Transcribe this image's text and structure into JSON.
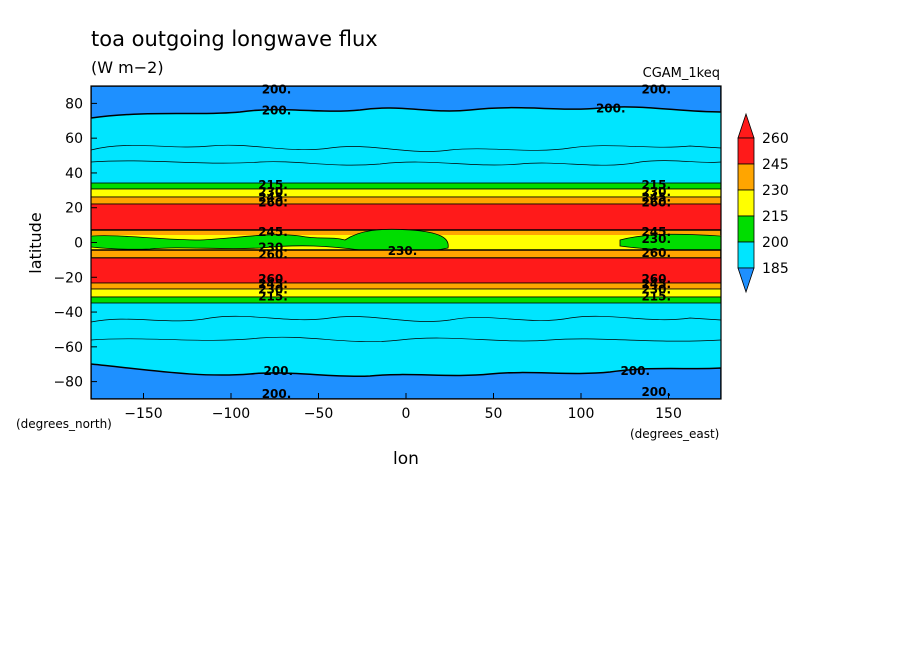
{
  "chart_data": {
    "type": "heatmap",
    "title": "toa outgoing longwave flux",
    "units": "(W m−2)",
    "case": "CGAM_1keq",
    "xlabel": "lon",
    "ylabel": "latitude",
    "x_units": "(degrees_east)",
    "y_units": "(degrees_north)",
    "xlim": [
      -180,
      180
    ],
    "ylim": [
      -90,
      90
    ],
    "x_ticks": [
      -150,
      -100,
      -50,
      0,
      50,
      100,
      150
    ],
    "y_ticks": [
      80,
      60,
      40,
      20,
      0,
      -20,
      -40,
      -60,
      -80
    ],
    "colorbar": {
      "levels": [
        185,
        200,
        215,
        230,
        245,
        260
      ],
      "labels": [
        "185",
        "200",
        "215",
        "230",
        "245",
        "260"
      ],
      "colors": [
        "#1e90ff",
        "#00e5ff",
        "#00dd00",
        "#ffff00",
        "#ffa500",
        "#ff1a1a"
      ],
      "extend": "both"
    },
    "zonal_bands": [
      {
        "lat": [
          80,
          90
        ],
        "class": "185-200"
      },
      {
        "lat": [
          33,
          72
        ],
        "class": "200-215"
      },
      {
        "lat": [
          30,
          33
        ],
        "class": "215-230"
      },
      {
        "lat": [
          25,
          30
        ],
        "class": "230-245"
      },
      {
        "lat": [
          22,
          25
        ],
        "class": "245-260"
      },
      {
        "lat": [
          7,
          22
        ],
        "class": ">260"
      },
      {
        "lat": [
          3,
          7
        ],
        "class": "230-245"
      },
      {
        "lat": [
          -6,
          3
        ],
        "class": "215-245"
      },
      {
        "lat": [
          -22,
          -8
        ],
        "class": ">260"
      },
      {
        "lat": [
          -25,
          -22
        ],
        "class": "245-260"
      },
      {
        "lat": [
          -30,
          -25
        ],
        "class": "230-245"
      },
      {
        "lat": [
          -33,
          -30
        ],
        "class": "215-230"
      },
      {
        "lat": [
          -72,
          -33
        ],
        "class": "200-215"
      },
      {
        "lat": [
          -90,
          -80
        ],
        "class": "185-200"
      }
    ],
    "contour_labels": [
      {
        "lon": -74,
        "lat": 88,
        "text": "200."
      },
      {
        "lon": 143,
        "lat": 88,
        "text": "200."
      },
      {
        "lon": -74,
        "lat": 76,
        "text": "200."
      },
      {
        "lon": 117,
        "lat": 77,
        "text": "200."
      },
      {
        "lon": -76,
        "lat": 33,
        "text": "215."
      },
      {
        "lon": 143,
        "lat": 33,
        "text": "215."
      },
      {
        "lon": -76,
        "lat": 29,
        "text": "230."
      },
      {
        "lon": 143,
        "lat": 29,
        "text": "230."
      },
      {
        "lon": -76,
        "lat": 26,
        "text": "245."
      },
      {
        "lon": 143,
        "lat": 26,
        "text": "245."
      },
      {
        "lon": -76,
        "lat": 23,
        "text": "260."
      },
      {
        "lon": 143,
        "lat": 23,
        "text": "260."
      },
      {
        "lon": -76,
        "lat": 6,
        "text": "245."
      },
      {
        "lon": 143,
        "lat": 6,
        "text": "245."
      },
      {
        "lon": -76,
        "lat": -3,
        "text": "230."
      },
      {
        "lon": 143,
        "lat": 2,
        "text": "230."
      },
      {
        "lon": -2,
        "lat": -5,
        "text": "230."
      },
      {
        "lon": -76,
        "lat": -7,
        "text": "260."
      },
      {
        "lon": 143,
        "lat": -6,
        "text": "260."
      },
      {
        "lon": -76,
        "lat": -21,
        "text": "260."
      },
      {
        "lon": 143,
        "lat": -21,
        "text": "260."
      },
      {
        "lon": -76,
        "lat": -24,
        "text": "245."
      },
      {
        "lon": 143,
        "lat": -24,
        "text": "245."
      },
      {
        "lon": -76,
        "lat": -27,
        "text": "230."
      },
      {
        "lon": 143,
        "lat": -27,
        "text": "230."
      },
      {
        "lon": -76,
        "lat": -31,
        "text": "215."
      },
      {
        "lon": 143,
        "lat": -31,
        "text": "215."
      },
      {
        "lon": -73,
        "lat": -74,
        "text": "200."
      },
      {
        "lon": 131,
        "lat": -74,
        "text": "200."
      },
      {
        "lon": -74,
        "lat": -87,
        "text": "200."
      },
      {
        "lon": 143,
        "lat": -86,
        "text": "200."
      }
    ]
  }
}
